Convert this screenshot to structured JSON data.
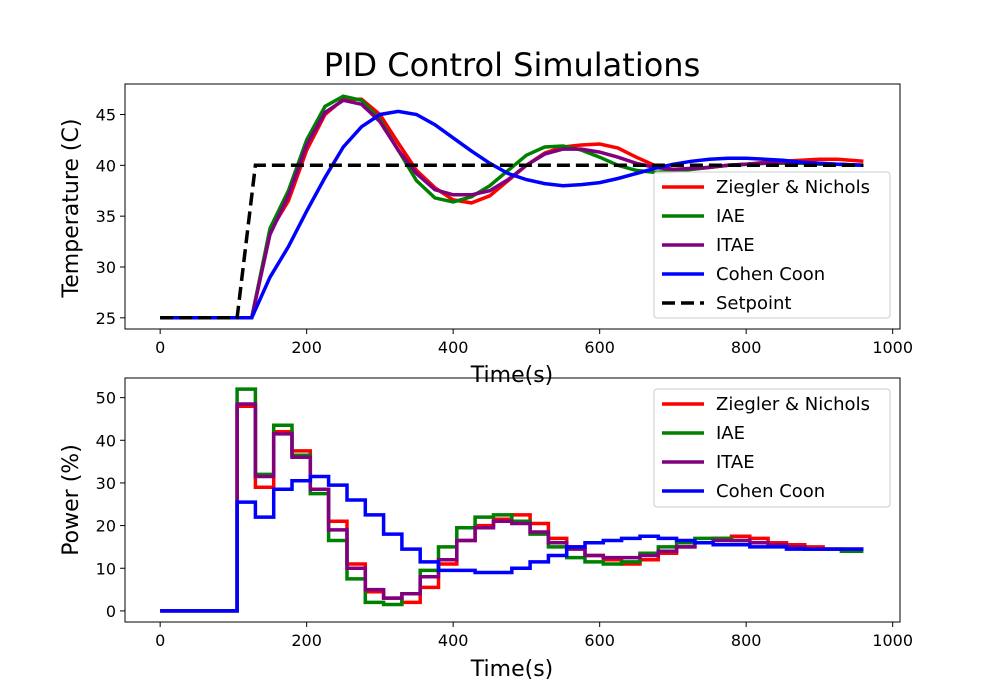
{
  "chart_data": [
    {
      "type": "line",
      "title": "PID Control Simulations",
      "xlabel": "Time(s)",
      "ylabel": "Temperature (C)",
      "xlim": [
        -48,
        1010
      ],
      "ylim": [
        23.9,
        48.0
      ],
      "xticks": [
        0,
        200,
        400,
        600,
        800,
        1000
      ],
      "yticks": [
        25,
        30,
        35,
        40,
        45
      ],
      "grid": false,
      "legend_position": "bottom-right",
      "x": [
        0,
        25,
        50,
        75,
        100,
        125,
        150,
        175,
        200,
        225,
        250,
        275,
        300,
        325,
        350,
        375,
        400,
        425,
        450,
        475,
        500,
        525,
        550,
        575,
        600,
        625,
        650,
        675,
        700,
        725,
        750,
        775,
        800,
        825,
        850,
        875,
        900,
        925,
        960
      ],
      "series": [
        {
          "name": "Ziegler & Nichols",
          "color": "#ff0000",
          "values": [
            25,
            25,
            25,
            25,
            25,
            25,
            33.5,
            36.5,
            41.5,
            45,
            46.5,
            46.5,
            45,
            42.2,
            39.5,
            37.8,
            36.6,
            36.3,
            37,
            38.5,
            40,
            41.2,
            41.8,
            42,
            42.1,
            41.7,
            40.8,
            40,
            39.6,
            39.6,
            39.8,
            40,
            40.1,
            40.3,
            40.4,
            40.5,
            40.6,
            40.6,
            40.4
          ]
        },
        {
          "name": "IAE",
          "color": "#008000",
          "values": [
            25,
            25,
            25,
            25,
            25,
            25,
            33.8,
            37.5,
            42.5,
            45.8,
            46.8,
            46.4,
            44.5,
            41.5,
            38.5,
            36.8,
            36.4,
            36.9,
            38,
            39.5,
            41,
            41.8,
            41.9,
            41.5,
            40.8,
            40,
            39.5,
            39.3,
            39.4,
            39.6,
            39.8,
            40,
            40.1,
            40.2,
            40.2,
            40.2,
            40.1,
            40.1,
            40
          ]
        },
        {
          "name": "ITAE",
          "color": "#800080",
          "values": [
            25,
            25,
            25,
            25,
            25,
            25,
            33.2,
            37,
            42,
            45.2,
            46.4,
            46,
            44.3,
            41.5,
            39.2,
            37.6,
            37.1,
            37.1,
            37.5,
            38.6,
            40,
            41.1,
            41.6,
            41.6,
            41.3,
            40.8,
            40.2,
            39.8,
            39.6,
            39.7,
            39.8,
            40,
            40.1,
            40.2,
            40.3,
            40.3,
            40.2,
            40.1,
            40
          ]
        },
        {
          "name": "Cohen Coon",
          "color": "#0000ff",
          "values": [
            25,
            25,
            25,
            25,
            25,
            25,
            29,
            32,
            35.5,
            38.8,
            41.8,
            43.8,
            45,
            45.3,
            45,
            44,
            42.7,
            41.4,
            40.2,
            39.2,
            38.6,
            38.2,
            38,
            38.1,
            38.3,
            38.7,
            39.2,
            39.7,
            40.1,
            40.4,
            40.6,
            40.7,
            40.7,
            40.6,
            40.5,
            40.3,
            40.2,
            40.1,
            40
          ]
        },
        {
          "name": "Setpoint",
          "color": "#000000",
          "dashed": true,
          "points": [
            [
              0,
              25
            ],
            [
              105,
              25
            ],
            [
              130,
              40
            ],
            [
              960,
              40
            ]
          ]
        }
      ]
    },
    {
      "type": "line",
      "step": true,
      "title": "",
      "xlabel": "Time(s)",
      "ylabel": "Power (%)",
      "xlim": [
        -48,
        1010
      ],
      "ylim": [
        -2.6,
        54.6
      ],
      "xticks": [
        0,
        200,
        400,
        600,
        800,
        1000
      ],
      "yticks": [
        0,
        10,
        20,
        30,
        40,
        50
      ],
      "grid": false,
      "legend_position": "top-right",
      "x": [
        0,
        105,
        130,
        155,
        180,
        205,
        230,
        255,
        280,
        305,
        330,
        355,
        380,
        405,
        430,
        455,
        480,
        505,
        530,
        555,
        580,
        605,
        630,
        655,
        680,
        705,
        730,
        755,
        780,
        805,
        830,
        855,
        880,
        905,
        930,
        960
      ],
      "series": [
        {
          "name": "Ziegler & Nichols",
          "color": "#ff0000",
          "values": [
            0,
            48,
            29,
            42,
            37.5,
            28.5,
            21,
            11,
            4.5,
            3,
            2,
            5.5,
            11,
            16.5,
            20,
            21.5,
            22.5,
            20.5,
            17,
            15,
            13,
            12,
            11,
            12,
            13.5,
            15,
            16,
            17,
            17.5,
            17,
            16,
            15.5,
            15,
            14.5,
            14.5,
            14.5
          ]
        },
        {
          "name": "IAE",
          "color": "#008000",
          "values": [
            0,
            52,
            32,
            43.5,
            36.5,
            27.5,
            16.5,
            7.5,
            2,
            1.5,
            4,
            9.5,
            15,
            19.5,
            22,
            22.5,
            21,
            18,
            15,
            12.5,
            11.5,
            11,
            11.5,
            13.5,
            15,
            16,
            17,
            17,
            16.5,
            16,
            15.5,
            15,
            14.5,
            14.5,
            14,
            14
          ]
        },
        {
          "name": "ITAE",
          "color": "#800080",
          "values": [
            0,
            48.5,
            31.5,
            41.5,
            36,
            28.5,
            19,
            10,
            5,
            3,
            4,
            8,
            12,
            16.5,
            19.5,
            21,
            20.5,
            18.5,
            16,
            14.5,
            13,
            12.5,
            12.5,
            13,
            14,
            15,
            16,
            16.5,
            16.5,
            16,
            15.5,
            15,
            14.5,
            14.5,
            14.5,
            14.5
          ]
        },
        {
          "name": "Cohen Coon",
          "color": "#0000ff",
          "values": [
            0,
            25.5,
            22,
            28.5,
            30.5,
            31.5,
            29.5,
            26,
            22.5,
            18,
            14.5,
            11.5,
            9.5,
            9.5,
            9,
            9,
            10,
            11.5,
            13,
            15,
            16,
            16.5,
            17,
            17.5,
            17,
            16.5,
            16,
            15.5,
            15.5,
            15,
            15,
            14.5,
            14.5,
            14.5,
            14.5,
            14.5
          ]
        }
      ]
    }
  ]
}
